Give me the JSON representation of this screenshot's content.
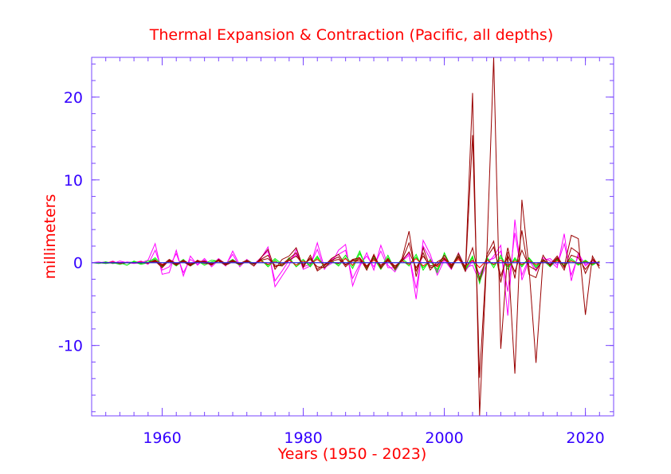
{
  "chart_data": {
    "type": "line",
    "title": "Thermal Expansion & Contraction (Pacific, all depths)",
    "xlabel": "Years (1950 - 2023)",
    "ylabel": "millimeters",
    "xlim": [
      1950,
      2024
    ],
    "ylim": [
      -18.5,
      24.8
    ],
    "x_ticks": [
      1960,
      1980,
      2000,
      2020
    ],
    "y_ticks": [
      -10,
      0,
      10,
      20
    ],
    "x_minor_step": 2,
    "y_minor_step": 2,
    "grid": false,
    "legend": "none",
    "x": [
      1950,
      1951,
      1952,
      1953,
      1954,
      1955,
      1956,
      1957,
      1958,
      1959,
      1960,
      1961,
      1962,
      1963,
      1964,
      1965,
      1966,
      1967,
      1968,
      1969,
      1970,
      1971,
      1972,
      1973,
      1974,
      1975,
      1976,
      1977,
      1978,
      1979,
      1980,
      1981,
      1982,
      1983,
      1984,
      1985,
      1986,
      1987,
      1988,
      1989,
      1990,
      1991,
      1992,
      1993,
      1994,
      1995,
      1996,
      1997,
      1998,
      1999,
      2000,
      2001,
      2002,
      2003,
      2004,
      2005,
      2006,
      2007,
      2008,
      2009,
      2010,
      2011,
      2012,
      2013,
      2014,
      2015,
      2016,
      2017,
      2018,
      2019,
      2020,
      2021,
      2022
    ],
    "series": [
      {
        "name": "magenta-1",
        "color": "#ff00ff",
        "values": [
          0,
          0,
          0.1,
          -0.1,
          0.2,
          0,
          -0.1,
          0,
          0.3,
          2.3,
          -1.4,
          -1.2,
          1.5,
          -1.6,
          0.8,
          -0.3,
          0.5,
          -0.5,
          0.3,
          -0.4,
          1.4,
          -0.3,
          0.2,
          -0.4,
          0.5,
          1.9,
          -2.9,
          -1.6,
          -0.3,
          1.6,
          -0.8,
          -0.4,
          2.4,
          -0.6,
          -0.1,
          1.5,
          2.2,
          -2.8,
          -0.5,
          1.2,
          -0.9,
          2.1,
          -0.3,
          -1.1,
          0.4,
          1.1,
          -4.4,
          2.7,
          1.0,
          -1.5,
          0.3,
          -0.8,
          1.2,
          -0.6,
          -0.3,
          -2.3,
          -0.2,
          0.8,
          2.1,
          -6.4,
          5.2,
          -2.1,
          0.3,
          -1.0,
          0.6,
          0.2,
          -0.6,
          3.5,
          -2.2,
          1.2,
          -0.4,
          0.3,
          -0.1
        ]
      },
      {
        "name": "magenta-2",
        "color": "#ff00ff",
        "values": [
          0,
          0.1,
          -0.1,
          0.2,
          -0.2,
          0.1,
          0,
          0.2,
          -0.2,
          1.5,
          -0.9,
          -0.5,
          1.1,
          -1.2,
          0.4,
          -0.2,
          0.3,
          -0.3,
          0.5,
          -0.2,
          1.0,
          -0.5,
          0.4,
          -0.2,
          0.6,
          1.4,
          -2.2,
          -1.0,
          0.3,
          1.0,
          -0.5,
          -0.2,
          1.6,
          -0.8,
          0.4,
          1.0,
          1.5,
          -1.9,
          -0.2,
          0.8,
          -0.5,
          1.4,
          -0.6,
          -0.6,
          0.2,
          0.9,
          -3.1,
          2.0,
          0.5,
          -1.0,
          0.6,
          -0.4,
          0.8,
          -1.0,
          0.2,
          -1.4,
          0.3,
          0.5,
          1.4,
          -3.5,
          3.6,
          -1.5,
          0.5,
          -0.7,
          0.3,
          0.5,
          -0.3,
          2.3,
          -1.5,
          0.8,
          -0.2,
          0.1,
          0
        ]
      },
      {
        "name": "green-1",
        "color": "#00ee00",
        "values": [
          0,
          0,
          -0.1,
          0,
          -0.2,
          0,
          0.1,
          -0.2,
          0,
          0.6,
          -0.3,
          0.2,
          -0.4,
          0.3,
          -0.2,
          0.2,
          -0.3,
          0.1,
          0.3,
          -0.1,
          0.4,
          -0.2,
          0.1,
          -0.2,
          0.4,
          -0.5,
          0.3,
          -0.4,
          0.6,
          -0.5,
          0.2,
          -0.3,
          0.8,
          -0.6,
          0.1,
          -0.2,
          0.9,
          -0.4,
          1.4,
          -0.8,
          0.7,
          -0.6,
          0.9,
          -0.9,
          0.3,
          -0.4,
          1.0,
          -0.9,
          0.4,
          -1.2,
          1.2,
          -0.6,
          1.1,
          -0.7,
          0.8,
          -2.5,
          0.7,
          -0.6,
          0.9,
          -0.8,
          0.6,
          -0.5,
          0.6,
          -0.4,
          0.3,
          -0.5,
          0.4,
          -0.3,
          0.5,
          -0.2,
          0.3,
          -0.3,
          0.2
        ]
      },
      {
        "name": "green-2",
        "color": "#00ee00",
        "values": [
          0,
          -0.1,
          0.1,
          -0.1,
          0,
          -0.3,
          0.2,
          -0.1,
          0.2,
          0.4,
          -0.5,
          0.3,
          -0.2,
          0.4,
          -0.4,
          0.1,
          -0.1,
          0.3,
          0.2,
          -0.3,
          0.2,
          -0.3,
          0.3,
          -0.1,
          0.2,
          -0.3,
          0.5,
          -0.2,
          0.4,
          -0.3,
          0.4,
          -0.5,
          0.6,
          -0.3,
          0.3,
          -0.4,
          0.6,
          -0.7,
          1.1,
          -0.5,
          0.5,
          -0.8,
          0.6,
          -0.6,
          0.5,
          -0.2,
          0.7,
          -0.6,
          0.2,
          -0.8,
          0.9,
          -0.4,
          0.8,
          -0.9,
          0.6,
          -1.8,
          0.5,
          -0.3,
          0.6,
          -0.5,
          0.4,
          -0.3,
          0.5,
          -0.6,
          0.4,
          -0.3,
          0.3,
          -0.4,
          0.3,
          -0.3,
          0.2,
          -0.2,
          0.1
        ]
      },
      {
        "name": "red-1",
        "color": "#ff0000",
        "values": [
          0,
          0,
          0,
          0.1,
          -0.1,
          0,
          0,
          0.1,
          -0.1,
          0.3,
          -0.2,
          0.1,
          -0.1,
          0.2,
          -0.1,
          0,
          0.1,
          -0.1,
          0.2,
          -0.1,
          0.2,
          -0.1,
          0.1,
          -0.1,
          0.2,
          -0.2,
          0.1,
          -0.2,
          0.3,
          -0.3,
          0.2,
          -0.1,
          0.4,
          -0.3,
          0.1,
          -0.1,
          0.5,
          -0.3,
          0.6,
          -0.4,
          0.3,
          -0.3,
          0.4,
          -0.4,
          0.2,
          -0.2,
          0.5,
          -0.4,
          0.2,
          -0.5,
          0.5,
          -0.2,
          0.4,
          -0.4,
          0.3,
          -0.6,
          0.3,
          -0.2,
          0.3,
          -0.3,
          0.2,
          -0.2,
          0.2,
          -0.2,
          0.1,
          -0.2,
          0.2,
          -0.1,
          0.2,
          -0.1,
          0.1,
          -0.1,
          0.1
        ]
      },
      {
        "name": "brown-1",
        "color": "#990000",
        "values": [
          0,
          0,
          0,
          0,
          0,
          0,
          0,
          0,
          0,
          0.2,
          -0.6,
          0.3,
          -0.2,
          0.3,
          -0.2,
          0.2,
          0.1,
          -0.3,
          0.4,
          -0.1,
          0.3,
          -0.2,
          0.2,
          -0.4,
          0.6,
          1.6,
          -0.8,
          0.4,
          0.8,
          1.8,
          -0.6,
          0.9,
          -1.0,
          -0.4,
          0.5,
          1.0,
          -0.3,
          0.4,
          0.6,
          -0.9,
          1.0,
          -0.7,
          0.3,
          -0.8,
          0.5,
          3.8,
          -1.7,
          1.8,
          -0.6,
          -0.3,
          0.9,
          -0.5,
          1.1,
          -0.8,
          20.5,
          -18.5,
          0.5,
          24.8,
          -10.4,
          1.3,
          -13.4,
          7.6,
          -0.6,
          -12.1,
          0.4,
          -0.3,
          0.6,
          -0.5,
          3.3,
          2.9,
          -6.3,
          0.8,
          -0.7
        ]
      },
      {
        "name": "brown-2",
        "color": "#990000",
        "values": [
          0,
          0,
          0,
          0,
          0,
          0,
          0,
          0,
          0,
          0.3,
          -0.4,
          0.2,
          -0.3,
          0.2,
          -0.3,
          0.1,
          0.2,
          -0.2,
          0.3,
          -0.2,
          0.2,
          -0.1,
          0.3,
          -0.2,
          0.4,
          0.9,
          -0.5,
          -0.2,
          0.5,
          1.2,
          -0.4,
          0.6,
          -0.8,
          -0.2,
          0.3,
          0.7,
          -0.5,
          0.3,
          0.4,
          -0.6,
          0.8,
          -0.5,
          0.5,
          -0.6,
          0.3,
          2.4,
          -1.0,
          1.2,
          -0.9,
          0.1,
          0.6,
          -0.7,
          0.8,
          -1.1,
          15.4,
          -13.9,
          0.9,
          2.6,
          -2.4,
          1.8,
          -1.9,
          3.9,
          -1.4,
          -1.8,
          0.9,
          -0.4,
          0.5,
          -0.9,
          1.8,
          1.2,
          -1.3,
          0.5,
          -0.4
        ]
      },
      {
        "name": "brown-3",
        "color": "#990000",
        "values": [
          0,
          0,
          0,
          0,
          0,
          0,
          0,
          0,
          0,
          0.1,
          -0.3,
          0.4,
          -0.1,
          0.1,
          -0.4,
          0.3,
          -0.1,
          -0.1,
          0.2,
          -0.3,
          0.1,
          -0.2,
          0.1,
          -0.1,
          0.3,
          0.5,
          -0.3,
          -0.4,
          0.3,
          0.8,
          -0.2,
          0.4,
          -0.5,
          -0.6,
          0.2,
          0.4,
          -0.2,
          0.2,
          0.2,
          -0.4,
          0.5,
          -0.3,
          0.2,
          -0.4,
          0.2,
          1.3,
          -0.6,
          0.8,
          -0.4,
          -0.2,
          0.4,
          -0.3,
          0.6,
          -0.5,
          1.8,
          -2.1,
          0.6,
          1.9,
          -1.6,
          0.9,
          -1.1,
          1.5,
          -0.4,
          -0.9,
          0.3,
          -0.2,
          0.8,
          -0.6,
          0.9,
          0.6,
          -0.8,
          0.3,
          -0.3
        ]
      },
      {
        "name": "navy-1",
        "color": "#000066",
        "values": [
          0,
          0,
          0,
          0,
          0,
          0,
          0,
          0,
          0,
          0,
          0,
          0,
          0,
          0,
          0,
          0,
          0,
          0,
          0,
          0,
          0,
          0,
          0,
          0,
          0,
          0,
          0,
          0,
          0,
          0,
          0,
          0,
          0,
          0,
          0,
          0,
          0,
          0,
          0,
          0,
          0,
          0,
          0,
          0,
          0,
          0,
          0,
          0,
          0,
          0,
          0,
          0,
          0,
          0,
          0,
          0,
          0,
          0,
          0,
          0,
          0,
          0,
          0,
          0,
          0,
          0,
          0,
          0,
          0,
          0,
          0,
          0,
          0
        ]
      },
      {
        "name": "blue-1",
        "color": "#3333ff",
        "values": [
          0,
          0,
          0,
          0,
          0,
          0,
          0,
          0,
          0,
          0,
          0,
          0,
          0,
          0,
          0,
          0,
          0,
          0,
          0,
          0,
          0,
          0,
          0,
          0,
          0,
          0,
          0,
          0,
          0,
          0,
          0,
          0,
          0,
          0,
          0,
          0,
          0,
          0,
          0,
          0,
          0,
          0,
          0,
          0,
          0,
          0,
          0,
          0,
          0,
          0,
          0,
          0,
          0,
          0,
          0,
          0,
          0,
          0,
          0,
          0,
          0,
          0,
          0,
          0,
          0,
          0,
          0,
          0,
          0,
          0,
          0,
          0,
          0
        ]
      }
    ]
  },
  "colors": {
    "frame": "#7744ff",
    "tick_label": "#3300ff",
    "title": "#ff0000"
  }
}
